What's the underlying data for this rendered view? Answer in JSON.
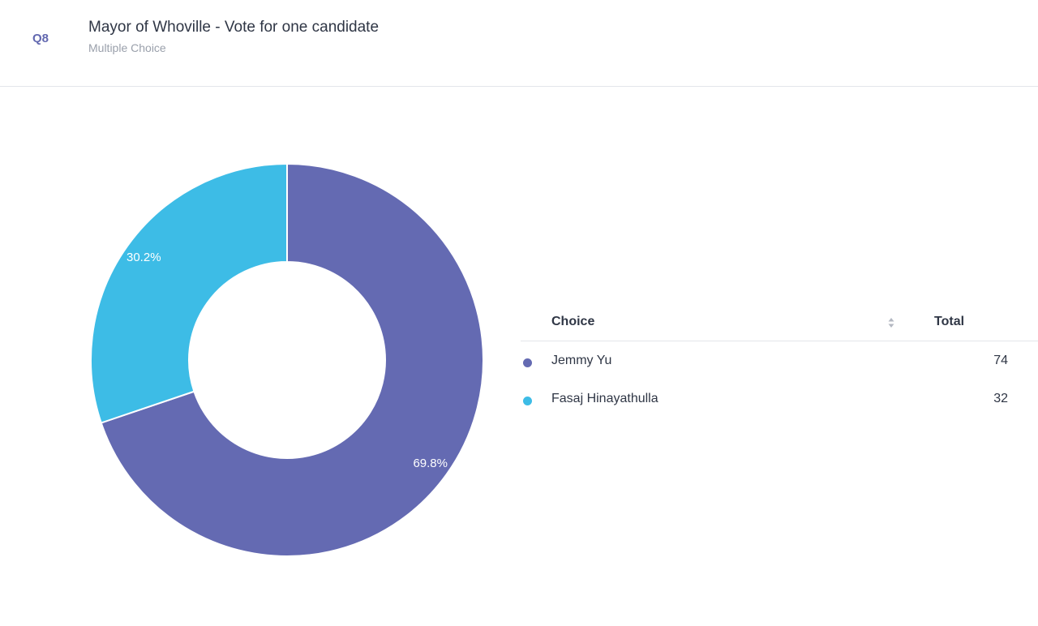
{
  "question": {
    "number": "Q8",
    "title": "Mayor of Whoville - Vote for one candidate",
    "type": "Multiple Choice"
  },
  "table": {
    "choice_header": "Choice",
    "total_header": "Total",
    "rows": [
      {
        "label": "Jemmy Yu",
        "total": "74",
        "color": "#646ab2"
      },
      {
        "label": "Fasaj Hinayathulla",
        "total": "32",
        "color": "#3dbce6"
      }
    ]
  },
  "chart_data": {
    "type": "pie",
    "donut": true,
    "categories": [
      "Jemmy Yu",
      "Fasaj Hinayathulla"
    ],
    "values": [
      74,
      32
    ],
    "percent_labels": [
      "69.8%",
      "30.2%"
    ],
    "colors": [
      "#646ab2",
      "#3dbce6"
    ]
  }
}
